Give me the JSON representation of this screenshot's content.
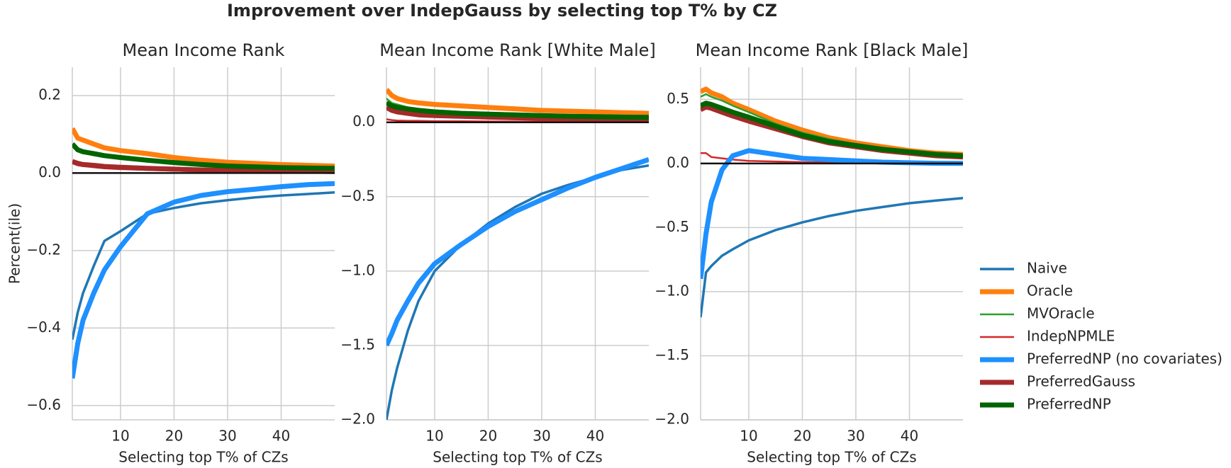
{
  "title": "Improvement over IndepGauss by selecting top T% by CZ",
  "legend": {
    "position": "right",
    "entries": [
      {
        "name": "Naive",
        "color": "#1f77b4",
        "width": 3.5
      },
      {
        "name": "Oracle",
        "color": "#ff7f0e",
        "width": 7
      },
      {
        "name": "MVOracle",
        "color": "#2ca02c",
        "width": 2.5
      },
      {
        "name": "IndepNPMLE",
        "color": "#d62728",
        "width": 2.5
      },
      {
        "name": "PreferredNP (no covariates)",
        "color": "#1e90ff",
        "width": 7
      },
      {
        "name": "PreferredGauss",
        "color": "#a52a2a",
        "width": 7
      },
      {
        "name": "PreferredNP",
        "color": "#006400",
        "width": 7
      }
    ]
  },
  "chart_data": [
    {
      "type": "line",
      "title": "Mean Income Rank",
      "ylabel": "Percent(ile)",
      "xlabel": "Selecting top T% of CZs",
      "x": [
        1,
        2,
        3,
        5,
        7,
        10,
        15,
        20,
        25,
        30,
        35,
        40,
        45,
        50
      ],
      "xlim": [
        1,
        50
      ],
      "xticks": [
        10,
        20,
        30,
        40
      ],
      "ylim": [
        -0.637,
        0.273
      ],
      "yticks": [
        {
          "value": -0.6,
          "label": "−0.6"
        },
        {
          "value": -0.4,
          "label": "−0.4"
        },
        {
          "value": -0.2,
          "label": "−0.2"
        },
        {
          "value": 0,
          "label": "0.0"
        },
        0.2
      ],
      "reference_line": 0,
      "grid": true,
      "series": [
        {
          "values": [
            -0.43,
            -0.36,
            -0.31,
            -0.24,
            -0.175,
            -0.15,
            -0.105,
            -0.09,
            -0.078,
            -0.07,
            -0.063,
            -0.058,
            -0.054,
            -0.05
          ]
        },
        {
          "values": [
            0.115,
            0.09,
            0.085,
            0.075,
            0.065,
            0.058,
            0.05,
            0.04,
            0.033,
            0.028,
            0.025,
            0.022,
            0.02,
            0.018
          ]
        },
        {
          "values": [
            0.07,
            0.056,
            0.052,
            0.047,
            0.042,
            0.037,
            0.031,
            0.025,
            0.02,
            0.017,
            0.015,
            0.013,
            0.012,
            0.011
          ]
        },
        {
          "values": [
            0.025,
            0.02,
            0.018,
            0.015,
            0.012,
            0.01,
            0.008,
            0.006,
            0.005,
            0.004,
            0.004,
            0.003,
            0.003,
            0.003
          ]
        },
        {
          "values": [
            -0.53,
            -0.44,
            -0.38,
            -0.31,
            -0.25,
            -0.19,
            -0.105,
            -0.075,
            -0.058,
            -0.048,
            -0.042,
            -0.035,
            -0.03,
            -0.027
          ]
        },
        {
          "values": [
            0.03,
            0.025,
            0.022,
            0.02,
            0.017,
            0.015,
            0.012,
            0.01,
            0.008,
            0.007,
            0.006,
            0.005,
            0.005,
            0.004
          ]
        },
        {
          "values": [
            0.075,
            0.06,
            0.055,
            0.05,
            0.045,
            0.04,
            0.033,
            0.027,
            0.022,
            0.018,
            0.016,
            0.014,
            0.013,
            0.012
          ]
        }
      ]
    },
    {
      "type": "line",
      "title": "Mean Income Rank [White Male]",
      "xlabel": "Selecting top T% of CZs",
      "x": [
        1,
        2,
        3,
        5,
        7,
        10,
        15,
        20,
        25,
        30,
        35,
        40,
        45,
        50
      ],
      "xlim": [
        1,
        50
      ],
      "xticks": [
        10,
        20,
        30,
        40
      ],
      "ylim": [
        -2.0,
        0.37
      ],
      "yticks": [
        {
          "value": -2.0,
          "label": "−2.0"
        },
        {
          "value": -1.5,
          "label": "−1.5"
        },
        {
          "value": -1.0,
          "label": "−1.0"
        },
        {
          "value": -0.5,
          "label": "−0.5"
        },
        {
          "value": 0,
          "label": "0.0"
        }
      ],
      "reference_line": 0,
      "grid": true,
      "series": [
        {
          "values": [
            -2.0,
            -1.8,
            -1.65,
            -1.4,
            -1.2,
            -1.0,
            -0.82,
            -0.68,
            -0.57,
            -0.48,
            -0.42,
            -0.37,
            -0.32,
            -0.29
          ]
        },
        {
          "values": [
            0.22,
            0.18,
            0.16,
            0.14,
            0.13,
            0.12,
            0.11,
            0.1,
            0.09,
            0.08,
            0.075,
            0.07,
            0.065,
            0.06
          ]
        },
        {
          "values": [
            0.16,
            0.13,
            0.12,
            0.1,
            0.09,
            0.08,
            0.07,
            0.065,
            0.06,
            0.055,
            0.05,
            0.048,
            0.045,
            0.043
          ]
        },
        {
          "values": [
            0.02,
            0.015,
            0.012,
            0.01,
            0.01,
            0.008,
            0.007,
            0.006,
            0.005,
            0.005,
            0.004,
            0.004,
            0.004,
            0.003
          ]
        },
        {
          "values": [
            -1.5,
            -1.42,
            -1.33,
            -1.2,
            -1.08,
            -0.95,
            -0.82,
            -0.7,
            -0.6,
            -0.52,
            -0.44,
            -0.37,
            -0.31,
            -0.25
          ]
        },
        {
          "values": [
            0.1,
            0.08,
            0.07,
            0.06,
            0.05,
            0.045,
            0.04,
            0.035,
            0.03,
            0.027,
            0.025,
            0.022,
            0.02,
            0.019
          ]
        },
        {
          "values": [
            0.13,
            0.11,
            0.1,
            0.09,
            0.08,
            0.07,
            0.06,
            0.055,
            0.05,
            0.045,
            0.04,
            0.038,
            0.035,
            0.033
          ]
        }
      ]
    },
    {
      "type": "line",
      "title": "Mean Income Rank [Black Male]",
      "xlabel": "Selecting top T% of CZs",
      "x": [
        1,
        2,
        3,
        5,
        7,
        10,
        15,
        20,
        25,
        30,
        35,
        40,
        45,
        50
      ],
      "xlim": [
        1,
        50
      ],
      "xticks": [
        10,
        20,
        30,
        40
      ],
      "ylim": [
        -2.0,
        0.75
      ],
      "yticks": [
        {
          "value": -2.0,
          "label": "−2.0"
        },
        {
          "value": -1.5,
          "label": "−1.5"
        },
        {
          "value": -1.0,
          "label": "−1.0"
        },
        {
          "value": -0.5,
          "label": "−0.5"
        },
        {
          "value": 0,
          "label": "0.0"
        },
        0.5
      ],
      "reference_line": 0,
      "grid": true,
      "series": [
        {
          "values": [
            -1.2,
            -0.85,
            -0.8,
            -0.72,
            -0.67,
            -0.6,
            -0.52,
            -0.46,
            -0.41,
            -0.37,
            -0.34,
            -0.31,
            -0.29,
            -0.27
          ]
        },
        {
          "values": [
            0.56,
            0.58,
            0.55,
            0.52,
            0.47,
            0.42,
            0.33,
            0.26,
            0.2,
            0.16,
            0.13,
            0.1,
            0.08,
            0.07
          ]
        },
        {
          "values": [
            0.52,
            0.54,
            0.52,
            0.49,
            0.45,
            0.4,
            0.31,
            0.24,
            0.19,
            0.15,
            0.12,
            0.1,
            0.08,
            0.061
          ]
        },
        {
          "values": [
            0.08,
            0.08,
            0.05,
            0.04,
            0.03,
            0.02,
            0.015,
            0.01,
            0.008,
            0.005,
            0.004,
            0.003,
            0.002,
            0.002
          ]
        },
        {
          "values": [
            -0.9,
            -0.55,
            -0.3,
            -0.05,
            0.06,
            0.1,
            0.07,
            0.04,
            0.03,
            0.02,
            0.01,
            0.005,
            0.001,
            0.0
          ]
        },
        {
          "values": [
            0.42,
            0.44,
            0.43,
            0.4,
            0.37,
            0.33,
            0.27,
            0.21,
            0.16,
            0.13,
            0.1,
            0.08,
            0.06,
            0.05
          ]
        },
        {
          "values": [
            0.45,
            0.47,
            0.46,
            0.43,
            0.4,
            0.36,
            0.29,
            0.22,
            0.17,
            0.14,
            0.11,
            0.09,
            0.07,
            0.06
          ]
        }
      ]
    }
  ]
}
